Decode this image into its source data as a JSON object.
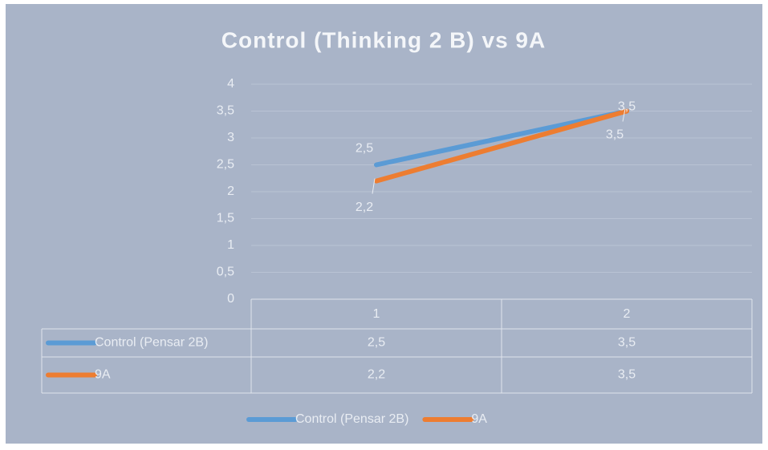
{
  "chart_data": {
    "type": "line",
    "title": "Control (Thinking 2 B) vs 9A",
    "categories": [
      "1",
      "2"
    ],
    "series": [
      {
        "name": "Control (Pensar 2B)",
        "color": "#5b9bd5",
        "values": [
          2.5,
          3.5
        ],
        "value_labels": [
          "2,5",
          "3,5"
        ]
      },
      {
        "name": "9A",
        "color": "#ed7d31",
        "values": [
          2.2,
          3.5
        ],
        "value_labels": [
          "2,2",
          "3,5"
        ]
      }
    ],
    "ylim": [
      0,
      4
    ],
    "yticks": [
      0,
      {
        "value": 0.5,
        "label": "0,5"
      },
      1,
      {
        "value": 1.5,
        "label": "1,5"
      },
      2,
      {
        "value": 2.5,
        "label": "2,5"
      },
      3,
      {
        "value": 3.5,
        "label": "3,5"
      },
      4
    ],
    "grid": true,
    "data_table": true,
    "legend": "bottom"
  }
}
